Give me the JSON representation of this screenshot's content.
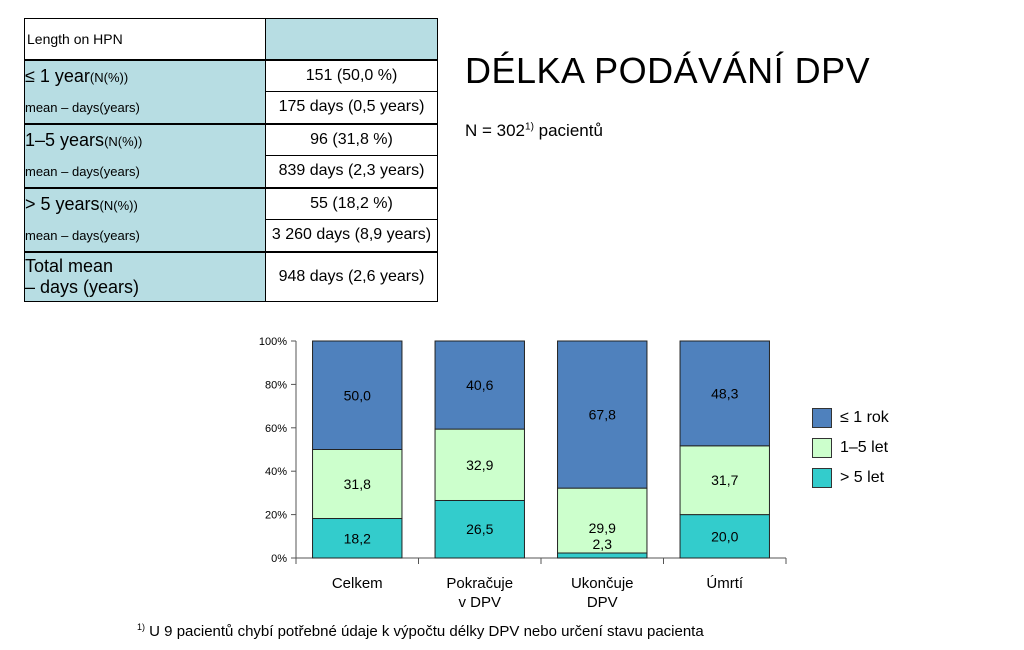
{
  "table": {
    "header": "Length on HPN",
    "groups": [
      {
        "label": "≤ 1 year",
        "unit": "(N(%))",
        "value": "151 (50,0 %)",
        "sub_label": "mean – days(years)",
        "sub_value": "175 days (0,5 years)"
      },
      {
        "label": "1–5 years",
        "unit": "(N(%))",
        "value": "96 (31,8 %)",
        "sub_label": "mean – days(years)",
        "sub_value": "839 days (2,3 years)"
      },
      {
        "label": "> 5 years",
        "unit": "(N(%))",
        "value": "55 (18,2 %)",
        "sub_label": "mean – days(years)",
        "sub_value": "3 260 days (8,9 years)"
      }
    ],
    "total": {
      "label_line1": "Total mean",
      "label_line2": "– days (years)",
      "value": "948 days (2,6 years)"
    }
  },
  "title": "DÉLKA PODÁVÁNÍ DPV",
  "n_line": {
    "prefix": "N = 302",
    "sup": "1)",
    "suffix": " pacientů"
  },
  "footnote": {
    "sup": "1)",
    "text": " U 9 pacientů chybí potřebné údaje k výpočtu délky DPV nebo určení stavu pacienta"
  },
  "chart_data": {
    "type": "bar",
    "stacked": true,
    "categories": [
      [
        "Celkem"
      ],
      [
        "Pokračuje",
        "v DPV"
      ],
      [
        "Ukončuje",
        "DPV"
      ],
      [
        "Úmrtí"
      ]
    ],
    "series": [
      {
        "name": "> 5 let",
        "color": "#33cccc",
        "values": [
          18.2,
          26.5,
          2.3,
          20.0
        ],
        "labels": [
          "18,2",
          "26,5",
          "2,3",
          "20,0"
        ]
      },
      {
        "name": "1–5 let",
        "color": "#ccffcc",
        "values": [
          31.8,
          32.9,
          29.9,
          31.7
        ],
        "labels": [
          "31,8",
          "32,9",
          "29,9",
          "31,7"
        ]
      },
      {
        "name": "≤ 1 rok",
        "color": "#4f81bd",
        "values": [
          50.0,
          40.6,
          67.8,
          48.3
        ],
        "labels": [
          "50,0",
          "40,6",
          "67,8",
          "48,3"
        ]
      }
    ],
    "yticks": [
      "0%",
      "20%",
      "40%",
      "60%",
      "80%",
      "100%"
    ],
    "ylim": [
      0,
      100
    ],
    "legend_position": "right",
    "legend_order": [
      "≤ 1 rok",
      "1–5 let",
      "> 5 let"
    ],
    "grid": false
  }
}
